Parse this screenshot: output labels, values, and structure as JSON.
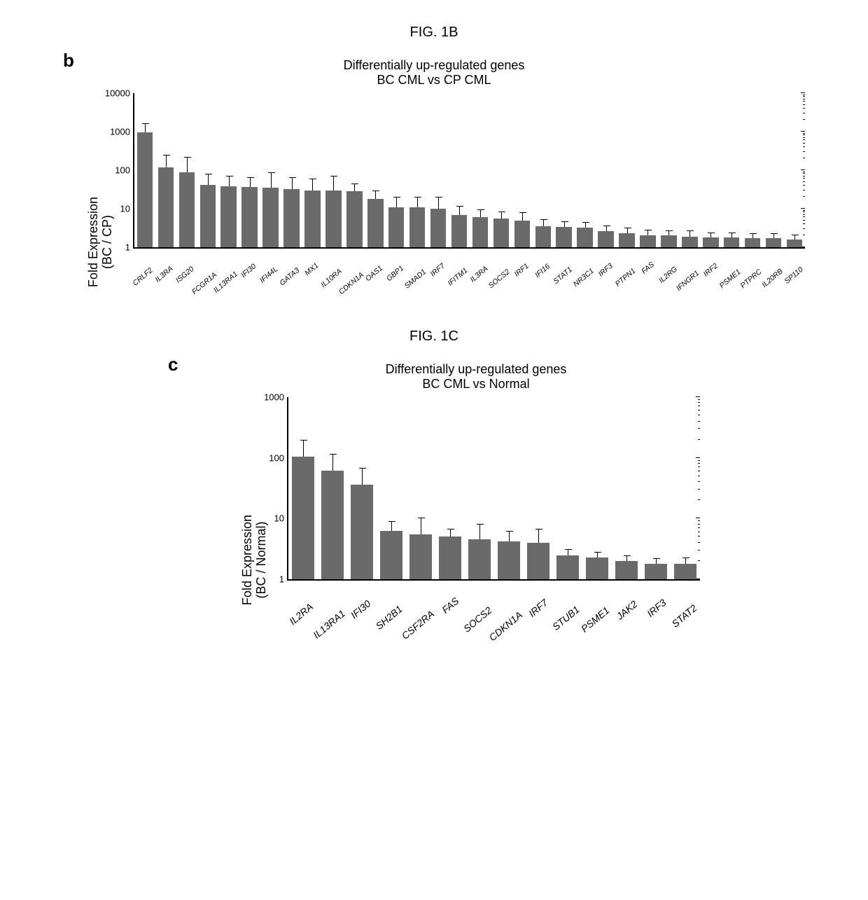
{
  "fig_b_caption": "FIG. 1B",
  "fig_c_caption": "FIG. 1C",
  "panel_b_label": "b",
  "panel_c_label": "c",
  "chart_b": {
    "type": "bar",
    "title": "Differentially up-regulated genes\nBC CML vs CP CML",
    "y_title": "Fold Expression\n(BC / CP)",
    "ylim_log": [
      0,
      4
    ],
    "yticks": [
      1,
      10,
      100,
      1000,
      10000
    ],
    "categories": [
      "CRLF2",
      "IL3RA",
      "ISG20",
      "FCGR1A",
      "IL13RA1",
      "IFI30",
      "IFI44L",
      "GATA3",
      "MX1",
      "IL10RA",
      "CDKN1A",
      "OAS1",
      "GBP1",
      "SMAD1",
      "IRF7",
      "IFITM1",
      "IL3RA",
      "SOCS2",
      "IRF1",
      "IFI16",
      "STAT1",
      "NR3C1",
      "IRF3",
      "PTPN1",
      "FAS",
      "IL2RG",
      "IFNGR1",
      "IRF2",
      "PSME1",
      "PTPRC",
      "IL20RB",
      "SP110"
    ],
    "values": [
      950,
      120,
      90,
      42,
      38,
      36,
      35,
      32,
      30,
      30,
      28,
      18,
      11,
      11,
      10,
      7,
      6,
      5.5,
      5,
      3.5,
      3.4,
      3.2,
      2.6,
      2.3,
      2.0,
      2.0,
      1.9,
      1.8,
      1.8,
      1.7,
      1.7,
      1.6
    ],
    "errors": [
      700,
      130,
      130,
      40,
      35,
      30,
      55,
      35,
      30,
      42,
      18,
      12,
      9,
      9,
      10,
      5,
      3.5,
      3,
      3,
      1.8,
      1.4,
      1.4,
      1.1,
      0.9,
      0.8,
      0.7,
      0.8,
      0.6,
      0.6,
      0.6,
      0.6,
      0.5
    ],
    "bar_color": "#6a6a6a",
    "background_color": "#ffffff",
    "bar_width": 0.75,
    "title_fontsize": 18,
    "ylabel_fontsize": 18,
    "xlabel_fontsize": 10.5
  },
  "chart_c": {
    "type": "bar",
    "title": "Differentially up-regulated genes\nBC CML vs Normal",
    "y_title": "Fold Expression\n(BC / Normal)",
    "ylim_log": [
      0,
      3
    ],
    "yticks": [
      1,
      10,
      100,
      1000
    ],
    "categories": [
      "IL2RA",
      "IL13RA1",
      "IFI30",
      "SH2B1",
      "CSF2RA",
      "FAS",
      "SOCS2",
      "CDKN1A",
      "IRF7",
      "STUB1",
      "PSME1",
      "JAK2",
      "IRF3",
      "STAT2"
    ],
    "values": [
      105,
      62,
      36,
      6.2,
      5.5,
      5.0,
      4.6,
      4.2,
      4.0,
      2.5,
      2.3,
      2.0,
      1.8,
      1.8
    ],
    "errors": [
      95,
      55,
      33,
      2.8,
      5.0,
      1.8,
      3.5,
      2.0,
      2.8,
      0.6,
      0.5,
      0.5,
      0.4,
      0.5
    ],
    "bar_color": "#6a6a6a",
    "background_color": "#ffffff",
    "bar_width": 0.75,
    "title_fontsize": 18,
    "ylabel_fontsize": 18,
    "xlabel_fontsize": 14
  }
}
